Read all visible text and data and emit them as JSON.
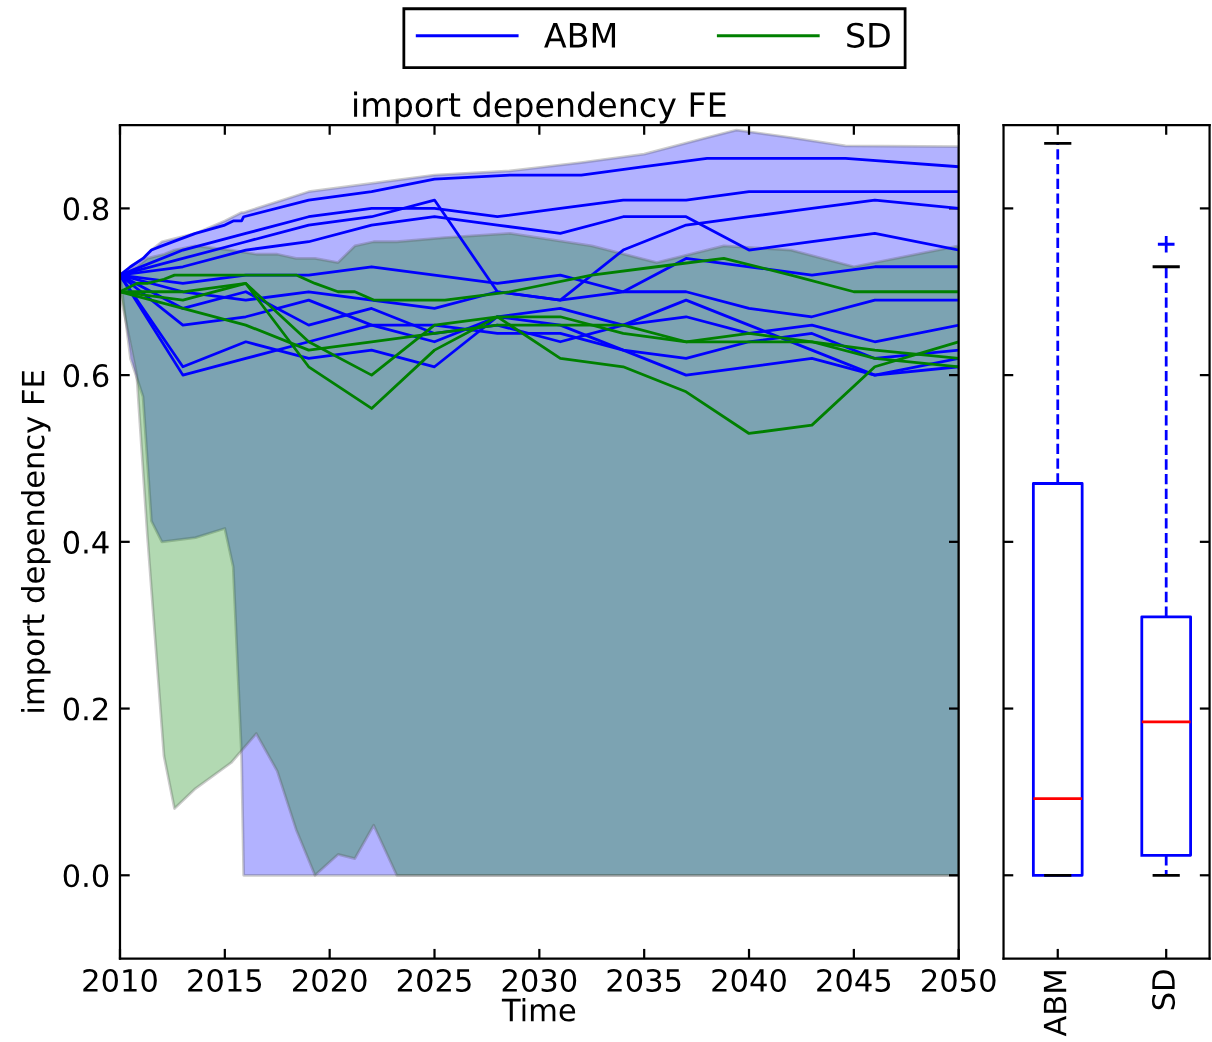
{
  "chart_data": [
    {
      "type": "line",
      "title": "import dependency FE",
      "xlabel": "Time",
      "ylabel": "import dependency FE",
      "x": [
        2010,
        2013,
        2016,
        2019,
        2022,
        2025,
        2028,
        2031,
        2034,
        2037,
        2040,
        2043,
        2046,
        2050
      ],
      "xlim": [
        2010,
        2050
      ],
      "xticks": [
        2010,
        2015,
        2020,
        2025,
        2030,
        2035,
        2040,
        2045,
        2050
      ],
      "ylim": [
        -0.1,
        0.9
      ],
      "yticks": [
        {
          "value": 0.0,
          "label": "0.0"
        },
        0.2,
        0.4,
        0.6,
        0.8
      ],
      "grid": false,
      "legend": "top",
      "line_style": "solid",
      "marker": "none",
      "series": [
        {
          "name": "ABM",
          "color": "#0000ff",
          "x": [
            2010,
            2010.5,
            2011.1,
            2011.5,
            2012,
            2013.6,
            2015,
            2015.4,
            2015.8,
            2015.9,
            2019,
            2022,
            2025,
            2028.6,
            2032,
            2035,
            2038,
            2039.4,
            2042,
            2044.6,
            2050
          ],
          "values": [
            0.72,
            0.73,
            0.74,
            0.75,
            0.755,
            0.77,
            0.78,
            0.785,
            0.785,
            0.79,
            0.81,
            0.82,
            0.835,
            0.84,
            0.84,
            0.85,
            0.86,
            0.86,
            0.86,
            0.86,
            0.85
          ],
          "upper": [
            0.72,
            0.73,
            0.74,
            0.75,
            0.76,
            0.77,
            0.785,
            0.79,
            0.795,
            0.795,
            0.82,
            0.83,
            0.84,
            0.845,
            0.855,
            0.865,
            0.885,
            0.894,
            0.885,
            0.875,
            0.874
          ],
          "lower": [
            0.72,
            0.62,
            0.574,
            0.425,
            0.4,
            0.405,
            0.416,
            0.37,
            0.143,
            0.0,
            0.0,
            0.0,
            0.0,
            0.0,
            0.0,
            0.0,
            0.0,
            0.0,
            0.0,
            0.0,
            0.0
          ]
        },
        {
          "color": "#0000ff",
          "values": [
            0.72,
            0.75,
            0.77,
            0.79,
            0.8,
            0.8,
            0.79,
            0.8,
            0.81,
            0.81,
            0.82,
            0.82,
            0.82,
            0.82
          ]
        },
        {
          "color": "#0000ff",
          "values": [
            0.72,
            0.74,
            0.76,
            0.78,
            0.79,
            0.81,
            0.7,
            0.69,
            0.75,
            0.78,
            0.79,
            0.8,
            0.81,
            0.8
          ]
        },
        {
          "color": "#0000ff",
          "values": [
            0.72,
            0.73,
            0.75,
            0.76,
            0.78,
            0.79,
            0.78,
            0.77,
            0.79,
            0.79,
            0.75,
            0.76,
            0.77,
            0.75
          ]
        },
        {
          "color": "#0000ff",
          "values": [
            0.72,
            0.71,
            0.72,
            0.72,
            0.73,
            0.72,
            0.71,
            0.72,
            0.7,
            0.74,
            0.73,
            0.72,
            0.73,
            0.73
          ]
        },
        {
          "color": "#0000ff",
          "values": [
            0.72,
            0.7,
            0.69,
            0.7,
            0.69,
            0.68,
            0.7,
            0.69,
            0.7,
            0.7,
            0.68,
            0.67,
            0.69,
            0.69
          ]
        },
        {
          "color": "#0000ff",
          "values": [
            0.72,
            0.68,
            0.7,
            0.66,
            0.68,
            0.65,
            0.66,
            0.64,
            0.66,
            0.67,
            0.65,
            0.66,
            0.64,
            0.66
          ]
        },
        {
          "color": "#0000ff",
          "values": [
            0.72,
            0.66,
            0.67,
            0.69,
            0.66,
            0.66,
            0.65,
            0.65,
            0.63,
            0.62,
            0.64,
            0.65,
            0.62,
            0.63
          ]
        },
        {
          "color": "#0000ff",
          "values": [
            0.72,
            0.6,
            0.62,
            0.64,
            0.66,
            0.64,
            0.67,
            0.66,
            0.63,
            0.6,
            0.61,
            0.62,
            0.6,
            0.61
          ]
        },
        {
          "color": "#0000ff",
          "values": [
            0.72,
            0.61,
            0.64,
            0.62,
            0.63,
            0.61,
            0.67,
            0.68,
            0.66,
            0.69,
            0.66,
            0.63,
            0.6,
            0.62
          ]
        },
        {
          "name": "SD",
          "color": "#008000",
          "x": [
            2010,
            2010.8,
            2011.3,
            2012.1,
            2012.6,
            2013.6,
            2015.3,
            2016.5,
            2017.5,
            2018.4,
            2019.3,
            2020.4,
            2021.2,
            2022.1,
            2023.2,
            2025.5,
            2028.6,
            2032.5,
            2035.6,
            2038.8,
            2042,
            2045,
            2050
          ],
          "values": [
            0.7,
            0.71,
            0.71,
            0.715,
            0.72,
            0.72,
            0.72,
            0.72,
            0.72,
            0.72,
            0.71,
            0.7,
            0.7,
            0.69,
            0.69,
            0.69,
            0.7,
            0.72,
            0.73,
            0.74,
            0.72,
            0.7,
            0.7
          ],
          "upper": [
            0.72,
            0.73,
            0.74,
            0.745,
            0.75,
            0.755,
            0.75,
            0.745,
            0.745,
            0.74,
            0.74,
            0.735,
            0.755,
            0.76,
            0.76,
            0.765,
            0.77,
            0.755,
            0.735,
            0.755,
            0.75,
            0.73,
            0.755
          ],
          "lower": [
            0.7,
            0.6,
            0.41,
            0.143,
            0.08,
            0.104,
            0.135,
            0.17,
            0.125,
            0.055,
            0.0,
            0.025,
            0.02,
            0.06,
            0.0,
            0.0,
            0.0,
            0.0,
            0.0,
            0.0,
            0.0,
            0.0,
            0.0
          ]
        },
        {
          "color": "#008000",
          "values": [
            0.7,
            0.7,
            0.71,
            0.61,
            0.56,
            0.63,
            0.67,
            0.67,
            0.65,
            0.64,
            0.64,
            0.64,
            0.62,
            0.61
          ]
        },
        {
          "color": "#008000",
          "values": [
            0.7,
            0.69,
            0.71,
            0.64,
            0.6,
            0.66,
            0.67,
            0.62,
            0.61,
            0.58,
            0.53,
            0.54,
            0.61,
            0.64
          ]
        },
        {
          "color": "#008000",
          "values": [
            0.7,
            0.68,
            0.66,
            0.63,
            0.64,
            0.65,
            0.66,
            0.66,
            0.66,
            0.64,
            0.65,
            0.64,
            0.63,
            0.62
          ]
        }
      ]
    },
    {
      "type": "box",
      "categories": [
        "ABM",
        "SD"
      ],
      "ylim": [
        -0.1,
        0.9
      ],
      "yticks": [
        {
          "value": 0.0,
          "label": null
        },
        {
          "value": 0.2,
          "label": null
        },
        {
          "value": 0.4,
          "label": null
        },
        {
          "value": 0.6,
          "label": null
        },
        {
          "value": 0.8,
          "label": null
        }
      ],
      "tick_labels": "x",
      "series": [
        {
          "color": "#0000ff",
          "boxes": [
            {
              "low": 0.0,
              "q1": 0.0,
              "median": 0.092,
              "q3": 0.47,
              "high": 0.878
            },
            {
              "low": 0.0,
              "q1": 0.024,
              "median": 0.184,
              "q3": 0.31,
              "high": 0.73,
              "outliers": [
                0.757
              ]
            }
          ]
        }
      ]
    }
  ]
}
